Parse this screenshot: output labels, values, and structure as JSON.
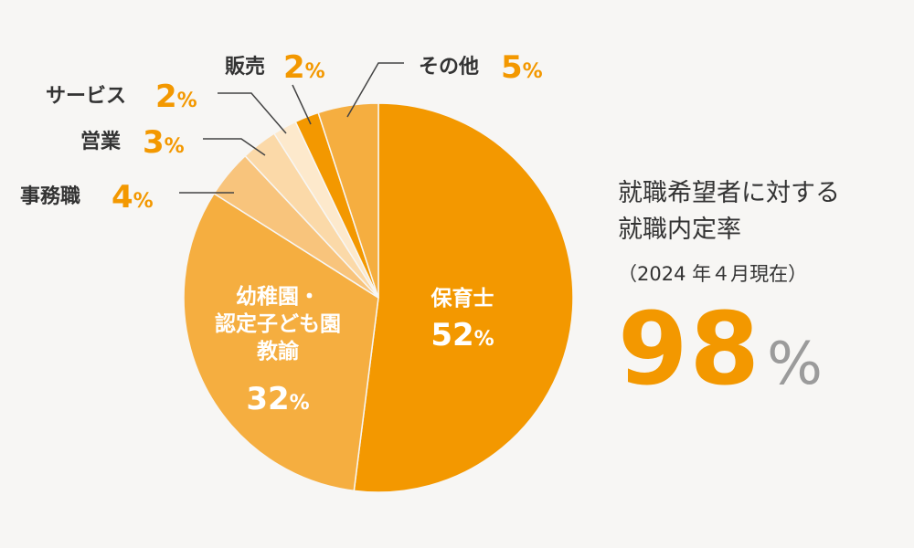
{
  "chart_data": {
    "type": "pie",
    "slices": [
      {
        "label": "保育士",
        "value": 52,
        "color": "#f39800",
        "placement": "inside"
      },
      {
        "label": "幼稚園・認定子ども園教諭",
        "label_lines": [
          "幼稚園・",
          "認定子ども園",
          "教諭"
        ],
        "value": 32,
        "color": "#f5ae40",
        "placement": "inside"
      },
      {
        "label": "事務職",
        "value": 4,
        "color": "#f8c47c",
        "placement": "outside"
      },
      {
        "label": "営業",
        "value": 3,
        "color": "#fbd9a8",
        "placement": "outside"
      },
      {
        "label": "サービス",
        "value": 2,
        "color": "#fde9cc",
        "placement": "outside"
      },
      {
        "label": "販売",
        "value": 2,
        "color": "#f39800",
        "placement": "outside"
      },
      {
        "label": "その他",
        "value": 5,
        "color": "#f5ae40",
        "placement": "outside"
      }
    ],
    "value_suffix": "%"
  },
  "stat": {
    "line1": "就職希望者に対する",
    "line2": "就職内定率",
    "asof": "（2024 年４月現在）",
    "rate": "98",
    "unit": "%"
  }
}
